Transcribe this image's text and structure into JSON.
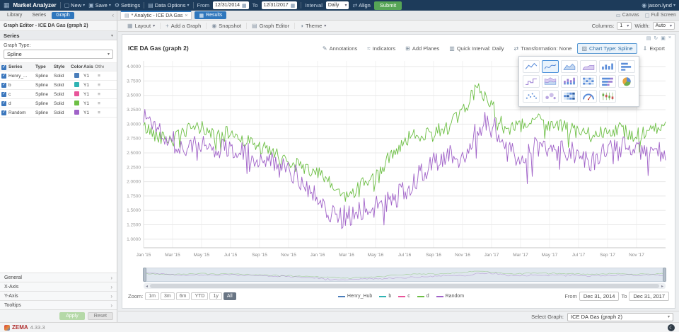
{
  "topbar": {
    "app": "Market Analyzer",
    "new": "New",
    "save": "Save",
    "settings": "Settings",
    "data_options": "Data Options",
    "from_label": "From",
    "from_value": "12/31/2014",
    "to_label": "To",
    "to_value": "12/31/2017",
    "interval_label": "Interval",
    "interval_value": "Daily",
    "align": "Align",
    "submit": "Submit",
    "user": "jason.lynd"
  },
  "tabsbar": {
    "left_tabs": [
      "Library",
      "Series",
      "Graph"
    ],
    "active_left_tab": "Graph",
    "doc_tab": "* Analytic - ICE DA Gas",
    "results": "Results",
    "canvas": "Canvas",
    "fullscreen": "Full Screen"
  },
  "sidebar": {
    "header": "Graph Editor - ICE DA Gas (graph 2)",
    "series_section": "Series",
    "graph_type_label": "Graph Type:",
    "graph_type_value": "Spline",
    "table": {
      "headers": [
        "Series",
        "Type",
        "Style",
        "Color",
        "Axis",
        "Other"
      ],
      "rows": [
        {
          "name": "Henry_...",
          "type": "Spline",
          "style": "Solid",
          "color": "#4a7ebb",
          "axis": "Y1"
        },
        {
          "name": "b",
          "type": "Spline",
          "style": "Solid",
          "color": "#2fb3b3",
          "axis": "Y1"
        },
        {
          "name": "c",
          "type": "Spline",
          "style": "Solid",
          "color": "#e8559a",
          "axis": "Y1"
        },
        {
          "name": "d",
          "type": "Spline",
          "style": "Solid",
          "color": "#6dbf45",
          "axis": "Y1"
        },
        {
          "name": "Random",
          "type": "Spline",
          "style": "Solid",
          "color": "#a062c8",
          "axis": "Y1"
        }
      ]
    },
    "sections": [
      "General",
      "X-Axis",
      "Y-Axis",
      "Tooltips"
    ],
    "apply": "Apply",
    "reset": "Reset"
  },
  "main": {
    "toolbar": {
      "layout": "Layout",
      "add_graph": "Add a Graph",
      "snapshot": "Snapshot",
      "graph_editor": "Graph Editor",
      "theme": "Theme",
      "columns_label": "Columns:",
      "columns_value": "1",
      "width_label": "Width:",
      "width_value": "Auto"
    },
    "chart_header": {
      "title": "ICE DA Gas (graph 2)",
      "annotations": "Annotations",
      "indicators": "Indicators",
      "add_planes": "Add Planes",
      "quick_interval": "Quick Interval: Daily",
      "transformation": "Transformation: None",
      "chart_type": "Chart Type: Spline",
      "export": "Export"
    },
    "zoom": {
      "label": "Zoom:",
      "options": [
        "1m",
        "3m",
        "6m",
        "YTD",
        "1y",
        "All"
      ],
      "active": "All"
    },
    "legend": [
      {
        "label": "Henry_Hub",
        "color": "#4a7ebb"
      },
      {
        "label": "b",
        "color": "#2fb3b3"
      },
      {
        "label": "c",
        "color": "#e8559a"
      },
      {
        "label": "d",
        "color": "#6dbf45"
      },
      {
        "label": "Random",
        "color": "#a062c8"
      }
    ],
    "range": {
      "from_label": "From",
      "from_value": "Dec 31, 2014",
      "to_label": "To",
      "to_value": "Dec 31, 2017"
    },
    "select_graph_label": "Select Graph:",
    "select_graph_value": "ICE DA Gas (graph 2)"
  },
  "chart_type_menu": {
    "selected": "spline",
    "items": [
      {
        "name": "line"
      },
      {
        "name": "spline"
      },
      {
        "name": "area"
      },
      {
        "name": "area-spline"
      },
      {
        "name": "column"
      },
      {
        "name": "bar"
      },
      {
        "name": "step"
      },
      {
        "name": "stacked-area"
      },
      {
        "name": "stacked-column"
      },
      {
        "name": "heat-table"
      },
      {
        "name": "stacked-bar"
      },
      {
        "name": "pie"
      },
      {
        "name": "scatter"
      },
      {
        "name": "bubble"
      },
      {
        "name": "heatmap"
      },
      {
        "name": "gauge"
      },
      {
        "name": "candlestick"
      }
    ]
  },
  "statusbar": {
    "brand": "ZEMA",
    "version": "4.33.3"
  },
  "chart_data": {
    "type": "line",
    "title": "ICE DA Gas (graph 2)",
    "ylim": [
      1.0,
      4.0
    ],
    "ytick_step": 0.25,
    "months_total": 36,
    "x_labels": [
      "Jan '15",
      "Mar '15",
      "May '15",
      "Jul '15",
      "Sep '15",
      "Nov '15",
      "Jan '16",
      "Mar '16",
      "May '16",
      "Jul '16",
      "Sep '16",
      "Nov '16",
      "Jan '17",
      "Mar '17",
      "May '17",
      "Jul '17",
      "Sep '17",
      "Nov '17"
    ],
    "series": [
      {
        "name": "d",
        "color": "#6dbf45",
        "noise": 0.13,
        "spike_prob": 0.05,
        "spike": 0.28,
        "seed": 42,
        "anchors": [
          2.95,
          2.8,
          2.72,
          2.88,
          2.95,
          2.78,
          2.85,
          2.72,
          2.6,
          2.48,
          2.35,
          2.25,
          2.15,
          1.92,
          1.72,
          1.95,
          2.05,
          2.45,
          2.72,
          2.82,
          2.88,
          2.95,
          3.2,
          3.65,
          3.35,
          2.9,
          2.95,
          3.1,
          3.0,
          2.95,
          2.85,
          2.8,
          2.92,
          2.9,
          2.8,
          2.88,
          2.95
        ]
      },
      {
        "name": "Random",
        "color": "#a062c8",
        "noise": 0.2,
        "spike_prob": 0.07,
        "spike": 0.5,
        "seed": 1337,
        "anchors": [
          3.15,
          2.95,
          2.7,
          2.55,
          2.65,
          2.55,
          2.62,
          2.52,
          2.42,
          2.3,
          2.18,
          2.02,
          1.72,
          1.45,
          1.38,
          1.52,
          1.58,
          1.65,
          1.85,
          2.1,
          2.3,
          2.5,
          2.38,
          2.95,
          3.1,
          2.52,
          2.42,
          2.6,
          2.5,
          2.62,
          2.42,
          2.32,
          2.52,
          2.62,
          2.5,
          2.58,
          2.45
        ]
      }
    ]
  }
}
